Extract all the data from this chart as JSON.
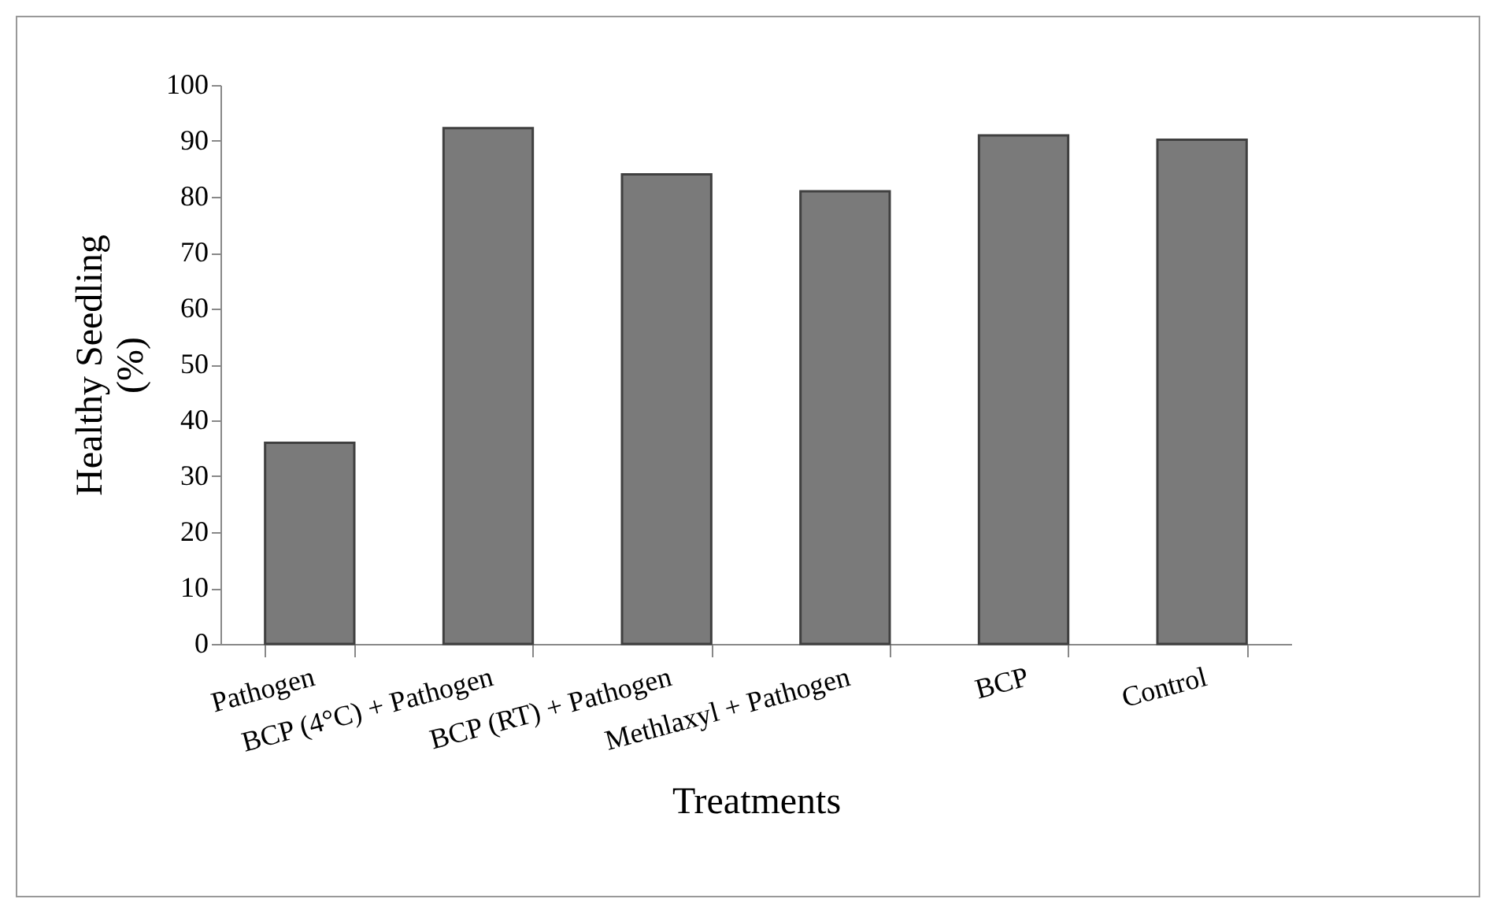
{
  "chart_data": {
    "type": "bar",
    "xlabel": "Treatments",
    "ylabel": "Healthy Seedling (%)",
    "categories": [
      "Pathogen",
      "BCP (4°C) + Pathogen",
      "BCP (RT) + Pathogen",
      "Methlaxyl + Pathogen",
      "BCP",
      "Control"
    ],
    "values": [
      36,
      92.3,
      84,
      81,
      91,
      90.2
    ],
    "color": "#7a7a7a",
    "ylim": [
      0,
      100
    ],
    "yticks": [
      0,
      10,
      20,
      30,
      40,
      50,
      60,
      70,
      80,
      90,
      100
    ],
    "grid": false
  }
}
